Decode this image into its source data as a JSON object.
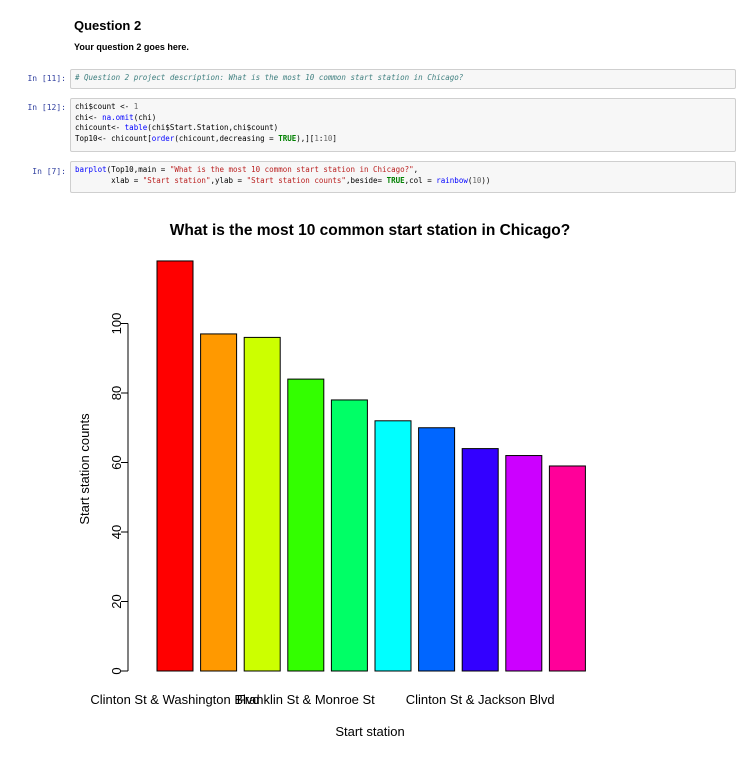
{
  "markdown": {
    "heading": "Question 2",
    "text": "Your question 2 goes here."
  },
  "cells": [
    {
      "prompt": "In [11]:",
      "lines": [
        [
          {
            "t": "# Question 2 project description: What is the most 10 common start station in Chicago?",
            "c": "cm"
          }
        ]
      ]
    },
    {
      "prompt": "In [12]:",
      "lines": [
        [
          {
            "t": "chi$count <- ",
            "c": ""
          },
          {
            "t": "1",
            "c": "num"
          }
        ],
        [
          {
            "t": "chi<- ",
            "c": ""
          },
          {
            "t": "na.omit",
            "c": "fn"
          },
          {
            "t": "(chi)",
            "c": ""
          }
        ],
        [
          {
            "t": "chicount<- ",
            "c": ""
          },
          {
            "t": "table",
            "c": "fn"
          },
          {
            "t": "(chi$Start.Station,chi$count)",
            "c": ""
          }
        ],
        [
          {
            "t": "Top10<- chicount[",
            "c": ""
          },
          {
            "t": "order",
            "c": "fn"
          },
          {
            "t": "(chicount,decreasing = ",
            "c": ""
          },
          {
            "t": "TRUE",
            "c": "kw"
          },
          {
            "t": "),][",
            "c": ""
          },
          {
            "t": "1",
            "c": "num"
          },
          {
            "t": ":",
            "c": ""
          },
          {
            "t": "10",
            "c": "num"
          },
          {
            "t": "]",
            "c": ""
          }
        ]
      ]
    },
    {
      "prompt": "In [7]:",
      "lines": [
        [
          {
            "t": "barplot",
            "c": "fn"
          },
          {
            "t": "(Top10,main = ",
            "c": ""
          },
          {
            "t": "\"What is the most 10 common start station in Chicago?\"",
            "c": "str"
          },
          {
            "t": ",",
            "c": ""
          }
        ],
        [
          {
            "t": "        xlab = ",
            "c": ""
          },
          {
            "t": "\"Start station\"",
            "c": "str"
          },
          {
            "t": ",ylab = ",
            "c": ""
          },
          {
            "t": "\"Start station counts\"",
            "c": "str"
          },
          {
            "t": ",beside= ",
            "c": ""
          },
          {
            "t": "TRUE",
            "c": "kw"
          },
          {
            "t": ",col = ",
            "c": ""
          },
          {
            "t": "rainbow",
            "c": "fn"
          },
          {
            "t": "(",
            "c": ""
          },
          {
            "t": "10",
            "c": "num"
          },
          {
            "t": "))",
            "c": ""
          }
        ]
      ]
    }
  ],
  "chart_data": {
    "type": "bar",
    "title": "What is the most 10 common start station in Chicago?",
    "xlabel": "Start station",
    "ylabel": "Start station counts",
    "ylim": [
      0,
      118
    ],
    "yticks": [
      0,
      20,
      40,
      60,
      80,
      100
    ],
    "category_labels": [
      {
        "index": 0,
        "text": "Clinton St & Washington Blvd"
      },
      {
        "index": 3,
        "text": "Franklin St & Monroe St"
      },
      {
        "index": 7,
        "text": "Clinton St & Jackson Blvd"
      }
    ],
    "values": [
      118,
      97,
      96,
      84,
      78,
      72,
      70,
      64,
      62,
      59
    ],
    "colors": [
      "#FF0000",
      "#FF9900",
      "#CCFF00",
      "#33FF00",
      "#00FF66",
      "#00FFFF",
      "#0066FF",
      "#3300FF",
      "#CC00FF",
      "#FF0099"
    ]
  }
}
